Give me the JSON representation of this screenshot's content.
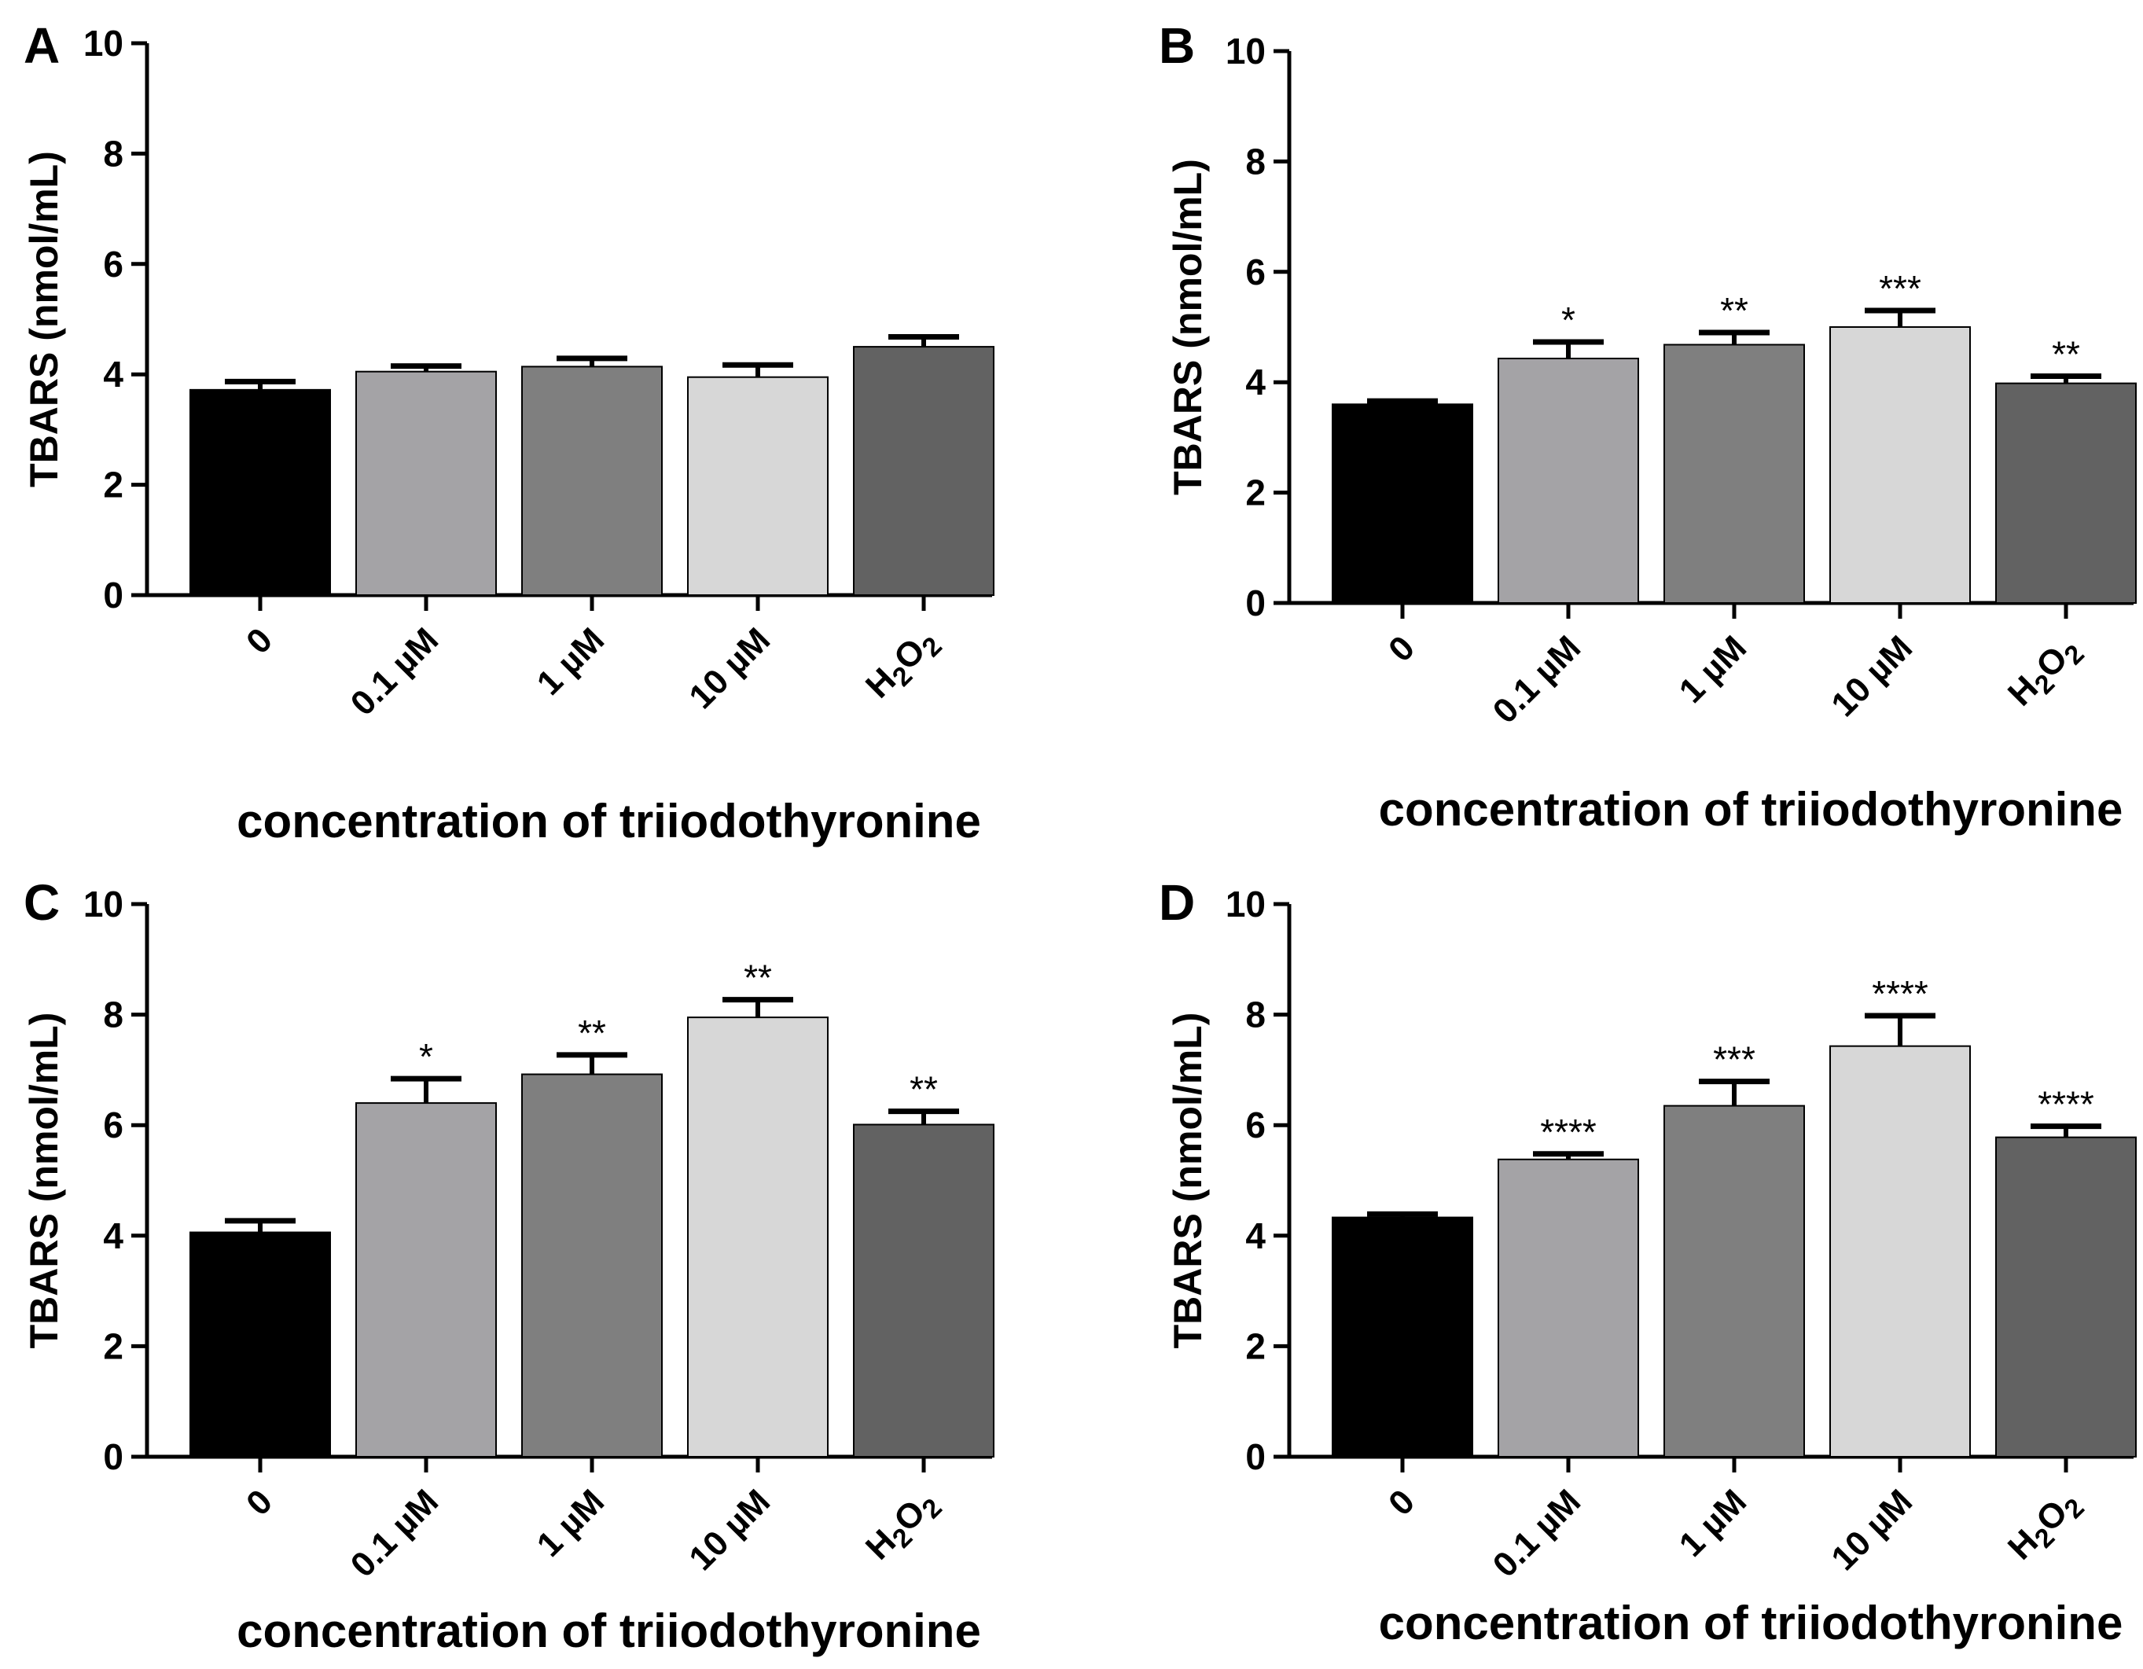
{
  "colors": {
    "bar_fills": [
      "#000000",
      "#a4a3a6",
      "#7f7f7f",
      "#d7d7d7",
      "#626262"
    ],
    "axis": "#000000"
  },
  "chart_data": [
    {
      "type": "bar",
      "panel": "A",
      "ylabel": "TBARS (nmol/mL)",
      "xlabel": "concentration of triiodothyronine",
      "ylim": [
        0,
        10
      ],
      "yticks": [
        "0",
        "2",
        "4",
        "6",
        "8",
        "10"
      ],
      "categories": [
        "0",
        "0.1 µM",
        "1 µM",
        "10 µM",
        "H2O2"
      ],
      "values": [
        3.72,
        4.05,
        4.14,
        3.95,
        4.5
      ],
      "errors": [
        0.15,
        0.1,
        0.15,
        0.22,
        0.18
      ],
      "annotations": [
        "",
        "",
        "",
        "",
        ""
      ]
    },
    {
      "type": "bar",
      "panel": "B",
      "ylabel": "TBARS (nmol/mL)",
      "xlabel": "concentration of triiodothyronine",
      "ylim": [
        0,
        10
      ],
      "yticks": [
        "0",
        "2",
        "4",
        "6",
        "8",
        "10"
      ],
      "categories": [
        "0",
        "0.1 µM",
        "1 µM",
        "10 µM",
        "H2O2"
      ],
      "values": [
        3.6,
        4.43,
        4.68,
        5.0,
        3.98
      ],
      "errors": [
        0.06,
        0.3,
        0.22,
        0.3,
        0.13
      ],
      "annotations": [
        "",
        "*",
        "**",
        "***",
        "**"
      ]
    },
    {
      "type": "bar",
      "panel": "C",
      "ylabel": "TBARS (nmol/mL)",
      "xlabel": "concentration of triiodothyronine",
      "ylim": [
        0,
        10
      ],
      "yticks": [
        "0",
        "2",
        "4",
        "6",
        "8",
        "10"
      ],
      "categories": [
        "0",
        "0.1 µM",
        "1 µM",
        "10 µM",
        "H2O2"
      ],
      "values": [
        4.06,
        6.4,
        6.92,
        7.95,
        6.01
      ],
      "errors": [
        0.21,
        0.44,
        0.35,
        0.32,
        0.24
      ],
      "annotations": [
        "",
        "*",
        "**",
        "**",
        "**"
      ]
    },
    {
      "type": "bar",
      "panel": "D",
      "ylabel": "TBARS (nmol/mL)",
      "xlabel": "concentration of triiodothyronine",
      "ylim": [
        0,
        10
      ],
      "yticks": [
        "0",
        "2",
        "4",
        "6",
        "8",
        "10"
      ],
      "categories": [
        "0",
        "0.1 µM",
        "1 µM",
        "10 µM",
        "H2O2"
      ],
      "values": [
        4.33,
        5.38,
        6.35,
        7.43,
        5.78
      ],
      "errors": [
        0.06,
        0.1,
        0.44,
        0.55,
        0.2
      ],
      "annotations": [
        "",
        "****",
        "***",
        "****",
        "****"
      ]
    }
  ]
}
